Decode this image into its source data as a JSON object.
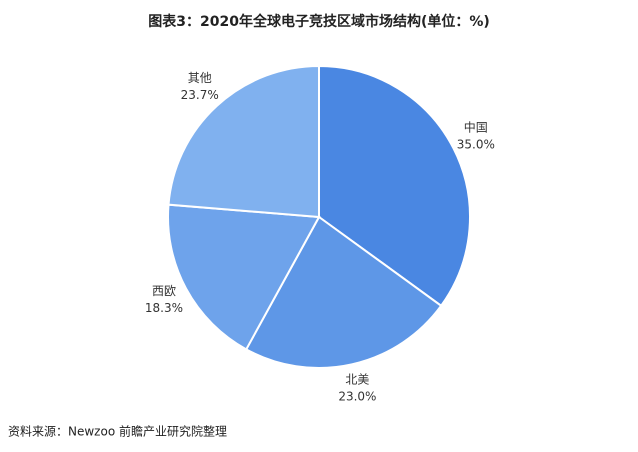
{
  "chart_data": {
    "type": "pie",
    "title": "图表3：2020年全球电子竞技区域市场结构(单位：%)",
    "categories": [
      "中国",
      "北美",
      "西欧",
      "其他"
    ],
    "values": [
      35.0,
      23.0,
      18.3,
      23.7
    ],
    "value_labels": [
      "35.0%",
      "23.0%",
      "18.3%",
      "23.7%"
    ],
    "colors": [
      "#4a87e2",
      "#5e97e7",
      "#6ea3eb",
      "#80b1ef"
    ],
    "source": "资料来源：Newzoo 前瞻产业研究院整理"
  }
}
